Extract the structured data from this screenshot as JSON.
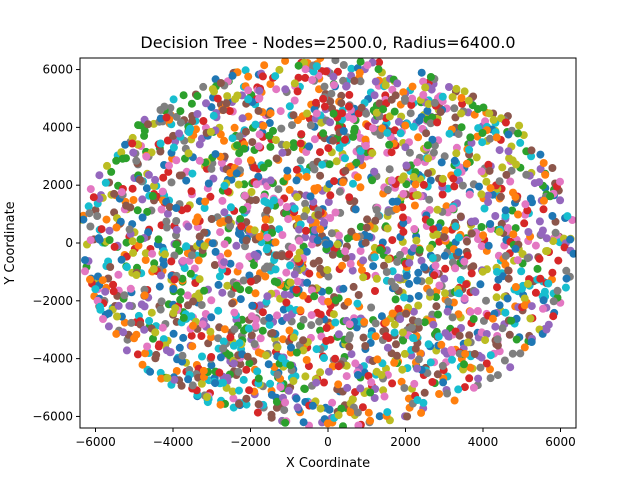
{
  "chart_data": {
    "type": "scatter",
    "title": "Decision Tree - Nodes=2500.0, Radius=6400.0",
    "xlabel": "X Coordinate",
    "ylabel": "Y Coordinate",
    "xlim": [
      -6400,
      6400
    ],
    "ylim": [
      -6400,
      6400
    ],
    "xticks": [
      -6000,
      -4000,
      -2000,
      0,
      2000,
      4000,
      6000
    ],
    "yticks": [
      -6000,
      -4000,
      -2000,
      0,
      2000,
      4000,
      6000
    ],
    "xtick_labels": [
      "−6000",
      "−4000",
      "−2000",
      "0",
      "2000",
      "4000",
      "6000"
    ],
    "ytick_labels": [
      "−6000",
      "−4000",
      "−2000",
      "0",
      "2000",
      "4000",
      "6000"
    ],
    "grid": false,
    "legend": false,
    "num_points": 2500,
    "distribution": "uniform within disk of radius 6400",
    "palette": [
      "#1f77b4",
      "#ff7f0e",
      "#2ca02c",
      "#d62728",
      "#9467bd",
      "#8c564b",
      "#e377c2",
      "#7f7f7f",
      "#bcbd22",
      "#17becf"
    ]
  }
}
